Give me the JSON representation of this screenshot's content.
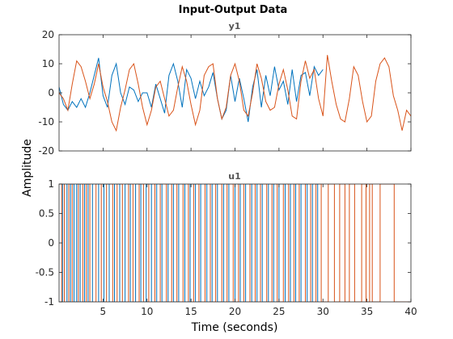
{
  "chart_data": {
    "type": "line",
    "title": "Input-Output Data",
    "xlabel": "Time (seconds)",
    "ylabel": "Amplitude",
    "xlim": [
      0,
      40
    ],
    "x_ticks": [
      5,
      10,
      15,
      20,
      25,
      30,
      35,
      40
    ],
    "colors": {
      "s1": "#0072BD",
      "s2": "#D95319"
    },
    "axes": [
      {
        "subtitle": "y1",
        "ylim": [
          -20,
          20
        ],
        "y_ticks": [
          -20,
          -10,
          0,
          10,
          20
        ],
        "series": [
          {
            "color": "#0072BD",
            "x": [
              0,
              0.5,
              1,
              1.5,
              2,
              2.5,
              3,
              3.5,
              4,
              4.5,
              5,
              5.5,
              6,
              6.5,
              7,
              7.5,
              8,
              8.5,
              9,
              9.5,
              10,
              10.5,
              11,
              11.5,
              12,
              12.5,
              13,
              13.5,
              14,
              14.5,
              15,
              15.5,
              16,
              16.5,
              17,
              17.5,
              18,
              18.5,
              19,
              19.5,
              20,
              20.5,
              21,
              21.5,
              22,
              22.5,
              23,
              23.5,
              24,
              24.5,
              25,
              25.5,
              26,
              26.5,
              27,
              27.5,
              28,
              28.5,
              29,
              29.5,
              30
            ],
            "y": [
              2,
              -4,
              -6,
              -3,
              -5,
              -2,
              -5,
              0,
              6,
              12,
              -1,
              -5,
              6,
              10,
              0,
              -4,
              2,
              1,
              -3,
              0,
              0,
              -5,
              3,
              -2,
              -7,
              6,
              10,
              4,
              -5,
              8,
              5,
              -2,
              4,
              -1,
              2,
              7,
              -2,
              -9,
              -6,
              6,
              -3,
              5,
              -2,
              -10,
              2,
              8,
              -5,
              6,
              -1,
              9,
              1,
              4,
              -4,
              8,
              -3,
              6,
              7,
              -1,
              9,
              6,
              8
            ]
          },
          {
            "color": "#D95319",
            "x": [
              0,
              0.5,
              1,
              1.5,
              2,
              2.5,
              3,
              3.5,
              4,
              4.5,
              5,
              5.5,
              6,
              6.5,
              7,
              7.5,
              8,
              8.5,
              9,
              9.5,
              10,
              10.5,
              11,
              11.5,
              12,
              12.5,
              13,
              13.5,
              14,
              14.5,
              15,
              15.5,
              16,
              16.5,
              17,
              17.5,
              18,
              18.5,
              19,
              19.5,
              20,
              20.5,
              21,
              21.5,
              22,
              22.5,
              23,
              23.5,
              24,
              24.5,
              25,
              25.5,
              26,
              26.5,
              27,
              27.5,
              28,
              28.5,
              29,
              29.5,
              30,
              30.5,
              31,
              31.5,
              32,
              32.5,
              33,
              33.5,
              34,
              34.5,
              35,
              35.5,
              36,
              36.5,
              37,
              37.5,
              38,
              38.5,
              39,
              39.5,
              40
            ],
            "y": [
              0,
              -2,
              -6,
              3,
              11,
              9,
              4,
              -2,
              3,
              10,
              2,
              -3,
              -10,
              -13,
              -5,
              1,
              8,
              10,
              3,
              -5,
              -11,
              -6,
              2,
              4,
              -2,
              -8,
              -6,
              2,
              9,
              4,
              -4,
              -11,
              -6,
              6,
              9,
              10,
              -2,
              -9,
              -5,
              6,
              10,
              4,
              -6,
              -8,
              0,
              10,
              5,
              -3,
              -6,
              -5,
              3,
              8,
              1,
              -8,
              -9,
              4,
              11,
              5,
              8,
              -2,
              -8,
              13,
              4,
              -4,
              -9,
              -10,
              -2,
              9,
              6,
              -3,
              -10,
              -8,
              4,
              10,
              12,
              9,
              -1,
              -6,
              -13,
              -6,
              -8
            ]
          }
        ]
      },
      {
        "subtitle": "u1",
        "ylim": [
          -1,
          1
        ],
        "y_ticks": [
          -1,
          -0.5,
          0,
          0.5,
          1
        ],
        "series": [
          {
            "color": "#D95319",
            "switch_times": [
              0.3,
              0.6,
              1.1,
              1.5,
              2.2,
              2.7,
              3.1,
              3.5,
              4.2,
              4.8,
              5.4,
              6.1,
              6.6,
              7.2,
              7.9,
              8.4,
              9.1,
              9.6,
              10.2,
              10.9,
              11.5,
              12.2,
              12.8,
              13.4,
              14.1,
              14.7,
              15.3,
              15.9,
              16.6,
              17.2,
              17.8,
              18.5,
              19.1,
              19.8,
              20.4,
              21.0,
              21.7,
              22.3,
              22.9,
              23.6,
              24.2,
              24.8,
              25.5,
              26.1,
              26.7,
              27.3,
              28.0,
              28.6,
              29.2,
              29.8,
              30.6,
              31.3,
              31.9,
              32.5,
              33.0,
              33.6,
              34.4,
              34.9,
              35.3,
              35.6,
              36.5,
              38.1
            ],
            "start_level": -1
          },
          {
            "color": "#0072BD",
            "switch_times": [
              0.4,
              0.9,
              1.3,
              1.7,
              2.0,
              2.4,
              2.9,
              3.3,
              3.8,
              4.5,
              5.1,
              5.7,
              6.3,
              6.9,
              7.5,
              8.1,
              8.7,
              9.3,
              9.9,
              10.5,
              11.1,
              11.7,
              12.4,
              13.0,
              13.6,
              14.3,
              14.9,
              15.5,
              16.1,
              16.8,
              17.4,
              18.0,
              18.7,
              19.3,
              20.0,
              20.6,
              21.2,
              21.9,
              22.5,
              23.1,
              23.8,
              24.4,
              25.0,
              25.7,
              26.3,
              26.9,
              27.5,
              28.2,
              28.8,
              29.4
            ],
            "start_level": -1,
            "end_x": 29.6
          }
        ]
      }
    ]
  }
}
